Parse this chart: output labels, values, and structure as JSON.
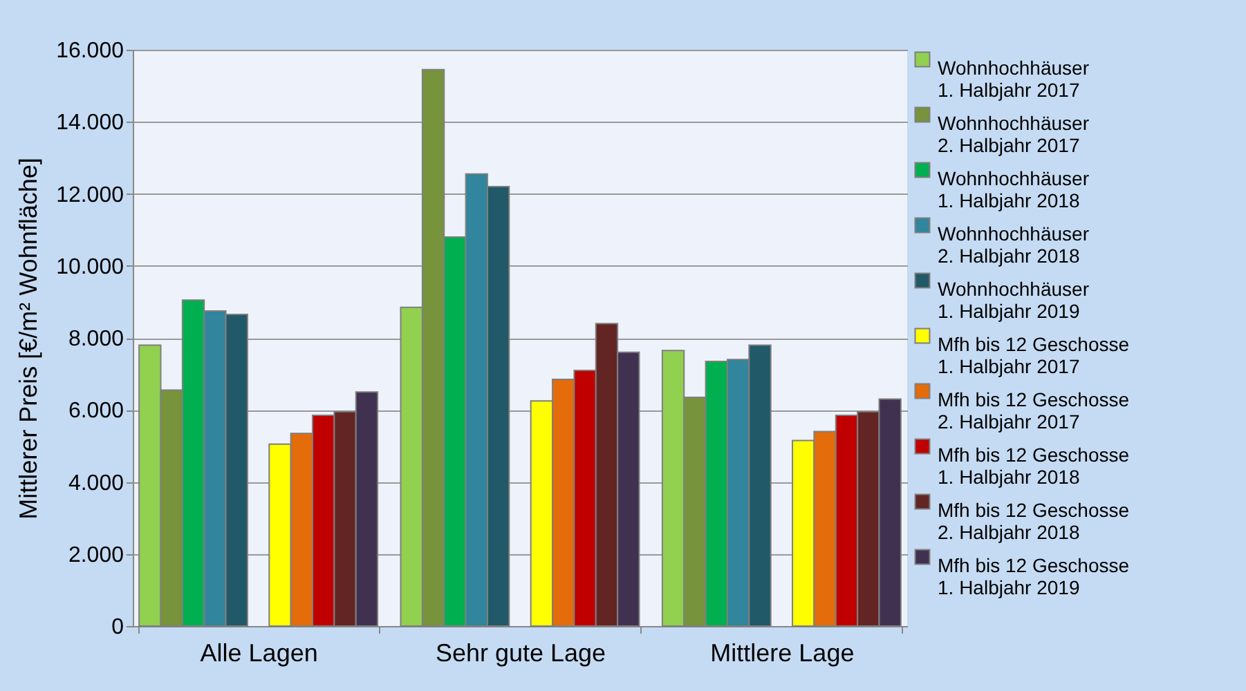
{
  "chart_data": {
    "type": "bar",
    "ylabel": "Mittlerer Preis  [€/m² Wohnfläche]",
    "categories": [
      "Alle Lagen",
      "Sehr gute Lage",
      "Mittlere Lage"
    ],
    "series": [
      {
        "name": "Wohnhochhäuser 1. Halbjahr 2017",
        "color": "#92d050",
        "values": [
          7800,
          8850,
          7650
        ]
      },
      {
        "name": "Wohnhochhäuser 2. Halbjahr 2017",
        "color": "#77933c",
        "values": [
          6550,
          15450,
          6350
        ]
      },
      {
        "name": "Wohnhochhäuser 1. Halbjahr 2018",
        "color": "#00b050",
        "values": [
          9050,
          10800,
          7350
        ]
      },
      {
        "name": "Wohnhochhäuser 2. Halbjahr 2018",
        "color": "#31859c",
        "values": [
          8750,
          12550,
          7400
        ]
      },
      {
        "name": "Wohnhochhäuser 1. Halbjahr 2019",
        "color": "#215968",
        "values": [
          8650,
          12200,
          7800
        ]
      },
      {
        "name": "Mfh bis 12 Geschosse 1. Halbjahr 2017",
        "color": "#ffff00",
        "values": [
          5050,
          6250,
          5150
        ]
      },
      {
        "name": "Mfh bis 12 Geschosse 2. Halbjahr 2017",
        "color": "#e46c0a",
        "values": [
          5350,
          6850,
          5400
        ]
      },
      {
        "name": "Mfh bis 12 Geschosse 1. Halbjahr 2018",
        "color": "#c00000",
        "values": [
          5850,
          7100,
          5850
        ]
      },
      {
        "name": "Mfh bis 12 Geschosse 2. Halbjahr 2018",
        "color": "#632523",
        "values": [
          5950,
          8400,
          5950
        ]
      },
      {
        "name": "Mfh bis 12 Geschosse 1. Halbjahr 2019",
        "color": "#403151",
        "values": [
          6500,
          7600,
          6300
        ]
      }
    ],
    "ylim": [
      0,
      16000
    ],
    "yticks": [
      0,
      {
        "value": 2000,
        "label": "2.000"
      },
      {
        "value": 4000,
        "label": "4.000"
      },
      {
        "value": 6000,
        "label": "6.000"
      },
      {
        "value": 8000,
        "label": "8.000"
      },
      {
        "value": 10000,
        "label": "10.000"
      },
      {
        "value": 12000,
        "label": "12.000"
      },
      {
        "value": 14000,
        "label": "14.000"
      },
      {
        "value": 16000,
        "label": "16.000"
      }
    ],
    "grid": "y",
    "legend": "right"
  }
}
